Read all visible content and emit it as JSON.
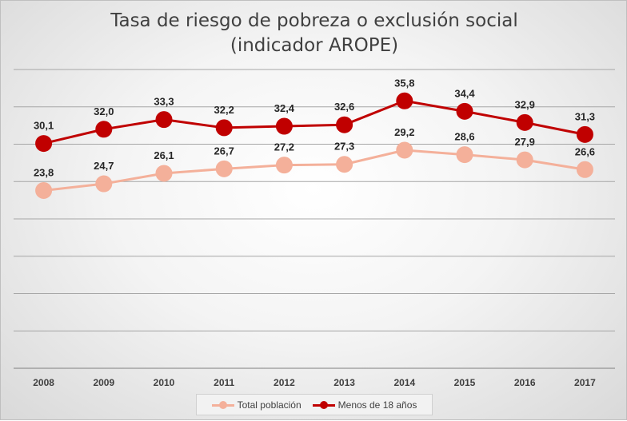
{
  "chart_data": {
    "type": "line",
    "title": "Tasa de riesgo de pobreza o exclusión social (indicador AROPE)",
    "xlabel": "",
    "ylabel": "",
    "categories": [
      "2008",
      "2009",
      "2010",
      "2011",
      "2012",
      "2013",
      "2014",
      "2015",
      "2016",
      "2017"
    ],
    "ylim": [
      0,
      40
    ],
    "grid": true,
    "legend_position": "bottom",
    "series": [
      {
        "name": "Total población",
        "color": "#f4b09a",
        "values": [
          23.8,
          24.7,
          26.1,
          26.7,
          27.2,
          27.3,
          29.2,
          28.6,
          27.9,
          26.6
        ],
        "labels": [
          "23,8",
          "24,7",
          "26,1",
          "26,7",
          "27,2",
          "27,3",
          "29,2",
          "28,6",
          "27,9",
          "26,6"
        ]
      },
      {
        "name": "Menos de 18 años",
        "color": "#c00000",
        "values": [
          30.1,
          32.0,
          33.3,
          32.2,
          32.4,
          32.6,
          35.8,
          34.4,
          32.9,
          31.3
        ],
        "labels": [
          "30,1",
          "32,0",
          "33,3",
          "32,2",
          "32,4",
          "32,6",
          "35,8",
          "34,4",
          "32,9",
          "31,3"
        ]
      }
    ]
  }
}
